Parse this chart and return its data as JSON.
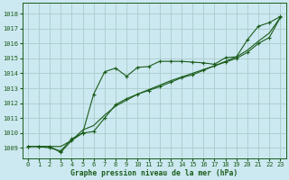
{
  "title": "Graphe pression niveau de la mer (hPa)",
  "background_color": "#cce8f0",
  "grid_color": "#aacccc",
  "line_color": "#1a5c1a",
  "xlim": [
    -0.5,
    23.5
  ],
  "ylim": [
    1008.3,
    1018.7
  ],
  "yticks": [
    1009,
    1010,
    1011,
    1012,
    1013,
    1014,
    1015,
    1016,
    1017,
    1018
  ],
  "xticks": [
    0,
    1,
    2,
    3,
    4,
    5,
    6,
    7,
    8,
    9,
    10,
    11,
    12,
    13,
    14,
    15,
    16,
    17,
    18,
    19,
    20,
    21,
    22,
    23
  ],
  "series1_x": [
    0,
    1,
    2,
    3,
    4,
    5,
    6,
    7,
    8,
    9,
    10,
    11,
    12,
    13,
    14,
    15,
    16,
    17,
    18,
    19,
    20,
    21,
    22,
    23
  ],
  "series1_y": [
    1009.1,
    1009.1,
    1009.1,
    1008.7,
    1009.5,
    1010.0,
    1012.6,
    1014.1,
    1014.35,
    1013.8,
    1014.4,
    1014.45,
    1014.8,
    1014.8,
    1014.8,
    1014.75,
    1014.7,
    1014.6,
    1015.05,
    1015.1,
    1016.25,
    1017.15,
    1017.4,
    1017.8
  ],
  "series2_x": [
    0,
    1,
    2,
    3,
    4,
    5,
    6,
    7,
    8,
    9,
    10,
    11,
    12,
    13,
    14,
    15,
    16,
    17,
    18,
    19,
    20,
    21,
    22,
    23
  ],
  "series2_y": [
    1009.1,
    1009.1,
    1009.0,
    1008.8,
    1009.6,
    1010.0,
    1010.1,
    1011.0,
    1011.9,
    1012.3,
    1012.6,
    1012.85,
    1013.1,
    1013.4,
    1013.7,
    1013.9,
    1014.2,
    1014.5,
    1014.75,
    1015.0,
    1015.4,
    1016.0,
    1016.4,
    1017.75
  ],
  "series3_x": [
    0,
    1,
    2,
    3,
    4,
    5,
    6,
    7,
    8,
    9,
    10,
    11,
    12,
    13,
    14,
    15,
    16,
    17,
    18,
    19,
    20,
    21,
    22,
    23
  ],
  "series3_y": [
    1009.1,
    1009.1,
    1009.1,
    1009.1,
    1009.5,
    1010.2,
    1010.5,
    1011.2,
    1011.8,
    1012.2,
    1012.6,
    1012.9,
    1013.2,
    1013.5,
    1013.75,
    1014.0,
    1014.25,
    1014.5,
    1014.8,
    1015.1,
    1015.55,
    1016.15,
    1016.7,
    1017.75
  ]
}
